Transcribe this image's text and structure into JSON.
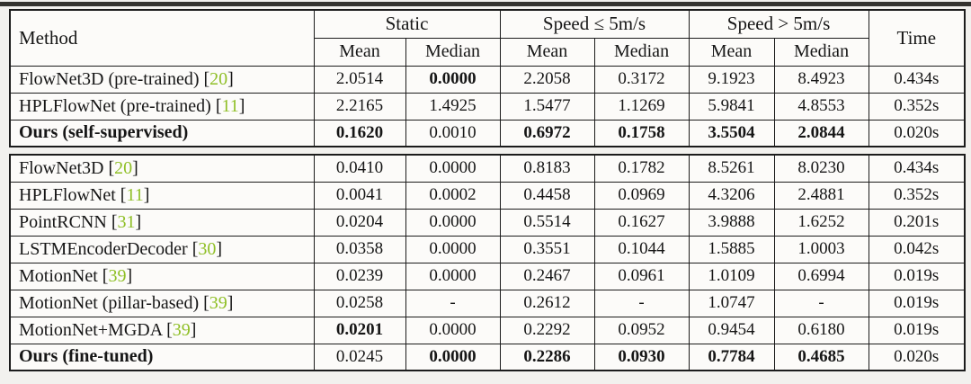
{
  "colors": {
    "citation_green": "#8fbf26",
    "border": "#1c1c1c",
    "cell_background": "#fcfbf9",
    "page_background": "#f2f1ee"
  },
  "table": {
    "method_header": "Method",
    "time_header": "Time",
    "groups": [
      {
        "label": "Static"
      },
      {
        "label": "Speed ≤ 5m/s"
      },
      {
        "label": "Speed > 5m/s"
      }
    ],
    "sub_headers": [
      "Mean",
      "Median",
      "Mean",
      "Median",
      "Mean",
      "Median"
    ],
    "sections": [
      {
        "rows": [
          {
            "method": "FlowNet3D (pre-trained)",
            "ref": "20",
            "method_bold": false,
            "cells": [
              {
                "v": "2.0514",
                "b": false
              },
              {
                "v": "0.0000",
                "b": true
              },
              {
                "v": "2.2058",
                "b": false
              },
              {
                "v": "0.3172",
                "b": false
              },
              {
                "v": "9.1923",
                "b": false
              },
              {
                "v": "8.4923",
                "b": false
              }
            ],
            "time": "0.434s"
          },
          {
            "method": "HPLFlowNet (pre-trained)",
            "ref": "11",
            "method_bold": false,
            "cells": [
              {
                "v": "2.2165",
                "b": false
              },
              {
                "v": "1.4925",
                "b": false
              },
              {
                "v": "1.5477",
                "b": false
              },
              {
                "v": "1.1269",
                "b": false
              },
              {
                "v": "5.9841",
                "b": false
              },
              {
                "v": "4.8553",
                "b": false
              }
            ],
            "time": "0.352s"
          },
          {
            "method": "Ours (self-supervised)",
            "ref": null,
            "method_bold": true,
            "cells": [
              {
                "v": "0.1620",
                "b": true
              },
              {
                "v": "0.0010",
                "b": false
              },
              {
                "v": "0.6972",
                "b": true
              },
              {
                "v": "0.1758",
                "b": true
              },
              {
                "v": "3.5504",
                "b": true
              },
              {
                "v": "2.0844",
                "b": true
              }
            ],
            "time": "0.020s"
          }
        ]
      },
      {
        "rows": [
          {
            "method": "FlowNet3D",
            "ref": "20",
            "method_bold": false,
            "cells": [
              {
                "v": "0.0410",
                "b": false
              },
              {
                "v": "0.0000",
                "b": false
              },
              {
                "v": "0.8183",
                "b": false
              },
              {
                "v": "0.1782",
                "b": false
              },
              {
                "v": "8.5261",
                "b": false
              },
              {
                "v": "8.0230",
                "b": false
              }
            ],
            "time": "0.434s"
          },
          {
            "method": "HPLFlowNet",
            "ref": "11",
            "method_bold": false,
            "cells": [
              {
                "v": "0.0041",
                "b": false
              },
              {
                "v": "0.0002",
                "b": false
              },
              {
                "v": "0.4458",
                "b": false
              },
              {
                "v": "0.0969",
                "b": false
              },
              {
                "v": "4.3206",
                "b": false
              },
              {
                "v": "2.4881",
                "b": false
              }
            ],
            "time": "0.352s"
          },
          {
            "method": "PointRCNN",
            "ref": "31",
            "method_bold": false,
            "cells": [
              {
                "v": "0.0204",
                "b": false
              },
              {
                "v": "0.0000",
                "b": false
              },
              {
                "v": "0.5514",
                "b": false
              },
              {
                "v": "0.1627",
                "b": false
              },
              {
                "v": "3.9888",
                "b": false
              },
              {
                "v": "1.6252",
                "b": false
              }
            ],
            "time": "0.201s"
          },
          {
            "method": "LSTMEncoderDecoder",
            "ref": "30",
            "method_bold": false,
            "cells": [
              {
                "v": "0.0358",
                "b": false
              },
              {
                "v": "0.0000",
                "b": false
              },
              {
                "v": "0.3551",
                "b": false
              },
              {
                "v": "0.1044",
                "b": false
              },
              {
                "v": "1.5885",
                "b": false
              },
              {
                "v": "1.0003",
                "b": false
              }
            ],
            "time": "0.042s"
          },
          {
            "method": "MotionNet",
            "ref": "39",
            "method_bold": false,
            "cells": [
              {
                "v": "0.0239",
                "b": false
              },
              {
                "v": "0.0000",
                "b": false
              },
              {
                "v": "0.2467",
                "b": false
              },
              {
                "v": "0.0961",
                "b": false
              },
              {
                "v": "1.0109",
                "b": false
              },
              {
                "v": "0.6994",
                "b": false
              }
            ],
            "time": "0.019s"
          },
          {
            "method": "MotionNet (pillar-based)",
            "ref": "39",
            "method_bold": false,
            "cells": [
              {
                "v": "0.0258",
                "b": false
              },
              {
                "v": "-",
                "b": false
              },
              {
                "v": "0.2612",
                "b": false
              },
              {
                "v": "-",
                "b": false
              },
              {
                "v": "1.0747",
                "b": false
              },
              {
                "v": "-",
                "b": false
              }
            ],
            "time": "0.019s"
          },
          {
            "method": "MotionNet+MGDA",
            "ref": "39",
            "method_bold": false,
            "cells": [
              {
                "v": "0.0201",
                "b": true
              },
              {
                "v": "0.0000",
                "b": false
              },
              {
                "v": "0.2292",
                "b": false
              },
              {
                "v": "0.0952",
                "b": false
              },
              {
                "v": "0.9454",
                "b": false
              },
              {
                "v": "0.6180",
                "b": false
              }
            ],
            "time": "0.019s"
          },
          {
            "method": "Ours (fine-tuned)",
            "ref": null,
            "method_bold": true,
            "cells": [
              {
                "v": "0.0245",
                "b": false
              },
              {
                "v": "0.0000",
                "b": true
              },
              {
                "v": "0.2286",
                "b": true
              },
              {
                "v": "0.0930",
                "b": true
              },
              {
                "v": "0.7784",
                "b": true
              },
              {
                "v": "0.4685",
                "b": true
              }
            ],
            "time": "0.020s"
          }
        ]
      }
    ]
  }
}
